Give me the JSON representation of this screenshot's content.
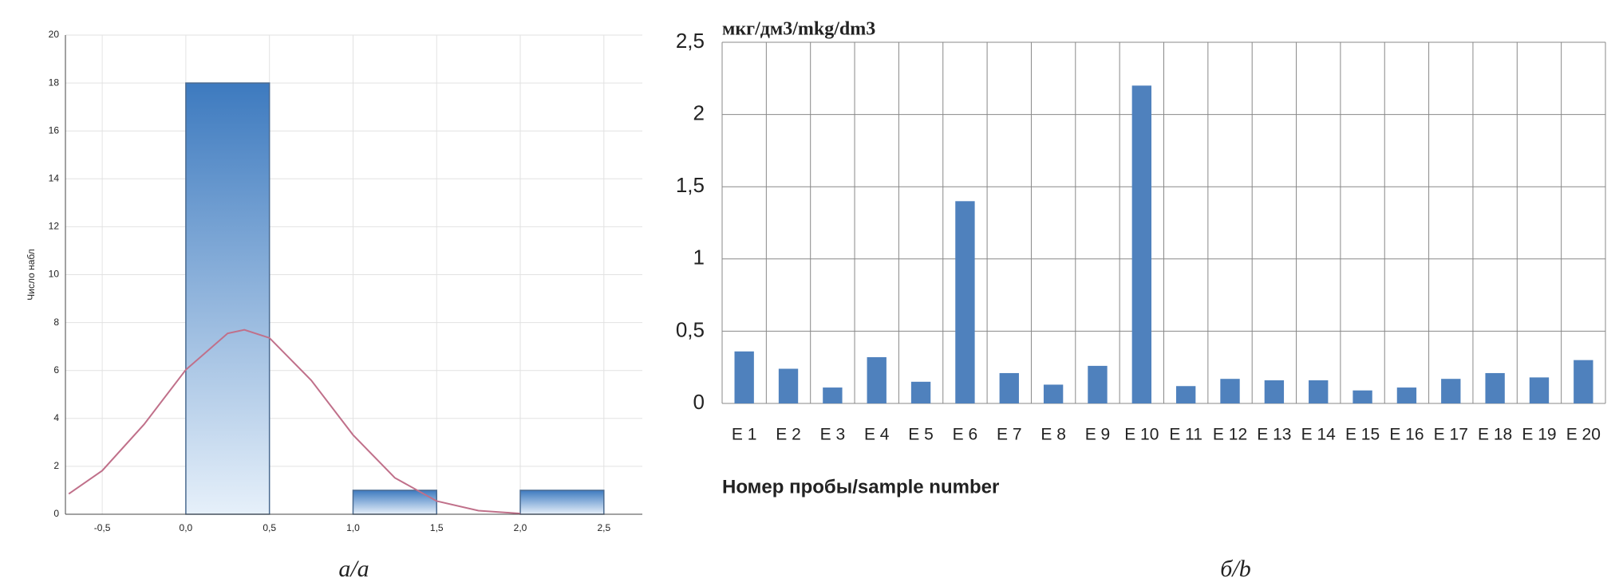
{
  "chart_data": [
    {
      "type": "histogram",
      "ylabel": "Число набл",
      "caption": "а/a",
      "bins": [
        0,
        0.5,
        1,
        1.5,
        2,
        2.5
      ],
      "values": [
        18,
        0,
        1,
        0,
        1
      ],
      "color": "#3d7abf",
      "curve": {
        "x": [
          -0.7,
          -0.5,
          -0.25,
          0,
          0.25,
          0.35,
          0.5,
          0.75,
          1,
          1.25,
          1.5,
          1.75,
          2
        ],
        "y": [
          0.85,
          1.82,
          3.75,
          6.03,
          7.55,
          7.7,
          7.36,
          5.59,
          3.31,
          1.52,
          0.55,
          0.15,
          0.03
        ],
        "color": "#c0708a"
      },
      "xlim": [
        -0.72,
        2.73
      ],
      "xticks": [
        {
          "value": -0.5,
          "label": "-0,5"
        },
        {
          "value": 0,
          "label": "0,0"
        },
        {
          "value": 0.5,
          "label": "0,5"
        },
        {
          "value": 1,
          "label": "1,0"
        },
        {
          "value": 1.5,
          "label": "1,5"
        },
        {
          "value": 2,
          "label": "2,0"
        },
        {
          "value": 2.5,
          "label": "2,5"
        }
      ],
      "ylim": [
        0,
        20
      ],
      "yticks": [
        0,
        2,
        4,
        6,
        8,
        10,
        12,
        14,
        16,
        18,
        20
      ],
      "grid": true
    },
    {
      "type": "bar",
      "title": "мкг/дм3/mkg/dm3",
      "xlabel": "Номер пробы/sample number",
      "caption": "б/b",
      "categories": [
        "E 1",
        "E 2",
        "E 3",
        "E 4",
        "E 5",
        "E 6",
        "E 7",
        "E 8",
        "E 9",
        "E 10",
        "E 11",
        "E 12",
        "E 13",
        "E 14",
        "E 15",
        "E 16",
        "E 17",
        "E 18",
        "E 19",
        "E 20"
      ],
      "values": [
        0.36,
        0.24,
        0.11,
        0.32,
        0.15,
        1.4,
        0.21,
        0.13,
        0.26,
        2.2,
        0.12,
        0.17,
        0.16,
        0.16,
        0.09,
        0.11,
        0.17,
        0.21,
        0.18,
        0.3
      ],
      "color": "#4f81bd",
      "ylim": [
        0,
        2.5
      ],
      "yticks": [
        0,
        {
          "value": 0.5,
          "label": "0,5"
        },
        1,
        {
          "value": 1.5,
          "label": "1,5"
        },
        2,
        {
          "value": 2.5,
          "label": "2,5"
        }
      ],
      "grid": true
    }
  ]
}
